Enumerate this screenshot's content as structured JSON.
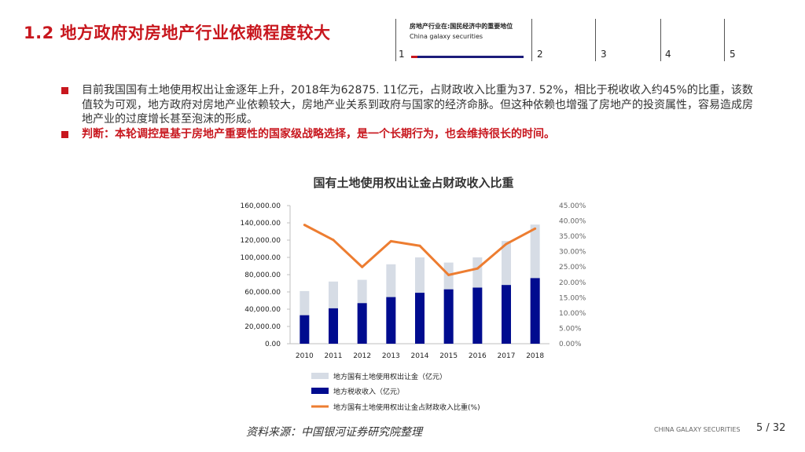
{
  "header": {
    "title": "1.2 地方政府对房地产行业依赖程度较大",
    "nav_title": "房地产行业在:国民经济中的重要地位",
    "nav_sub": "China galaxy securities",
    "nav_items": [
      "1",
      "2",
      "3",
      "4",
      "5"
    ]
  },
  "bullets": [
    "目前我国国有土地使用权出让金逐年上升，2018年为62875. 11亿元，占财政收入比重为37. 52%，相比于税收收入约45%的比重，该数值较为可观，地方政府对房地产业依赖较大，房地产业关系到政府与国家的经济命脉。但这种依赖也增强了房地产的投资属性，容易造成房地产业的过度增长甚至泡沫的形成。",
    "判断：本轮调控是基于房地产重要性的国家级战略选择，是一个长期行为，也会维持很长的时间。"
  ],
  "chart_data": {
    "type": "bar",
    "title": "国有土地使用权出让金占财政收入比重",
    "categories": [
      "2010",
      "2011",
      "2012",
      "2013",
      "2014",
      "2015",
      "2016",
      "2017",
      "2018"
    ],
    "series": [
      {
        "name": "地方国有土地使用权出让金（亿元）",
        "kind": "bar-stacked-total",
        "axis": "left",
        "color": "#d6dce5",
        "values": [
          61000,
          72000,
          74000,
          92000,
          100000,
          94000,
          100000,
          119000,
          138000
        ]
      },
      {
        "name": "地方税收收入（亿元）",
        "kind": "bar",
        "axis": "left",
        "color": "#000c8f",
        "values": [
          33000,
          41000,
          47000,
          54000,
          59000,
          63000,
          65000,
          68000,
          76000
        ]
      },
      {
        "name": "地方国有土地使用权出让金占财政收入比重(%)",
        "kind": "line",
        "axis": "right",
        "color": "#ed7d31",
        "values": [
          38.7,
          33.8,
          25.0,
          33.4,
          31.9,
          22.4,
          24.5,
          32.5,
          37.5
        ]
      }
    ],
    "y_left": {
      "ylim": [
        0,
        160000
      ],
      "ticks": [
        "0.00",
        "20,000.00",
        "40,000.00",
        "60,000.00",
        "80,000.00",
        "100,000.00",
        "120,000.00",
        "140,000.00",
        "160,000.00"
      ]
    },
    "y_right": {
      "ylim": [
        0,
        45
      ],
      "ticks": [
        "0.00%",
        "5.00%",
        "10.00%",
        "15.00%",
        "20.00%",
        "25.00%",
        "30.00%",
        "35.00%",
        "40.00%",
        "45.00%"
      ]
    },
    "legend_position": "bottom"
  },
  "footer": {
    "source": "资料来源：中国银河证券研究院整理",
    "brand": "CHINA GALAXY SECURITIES",
    "page": "5  /  32"
  }
}
